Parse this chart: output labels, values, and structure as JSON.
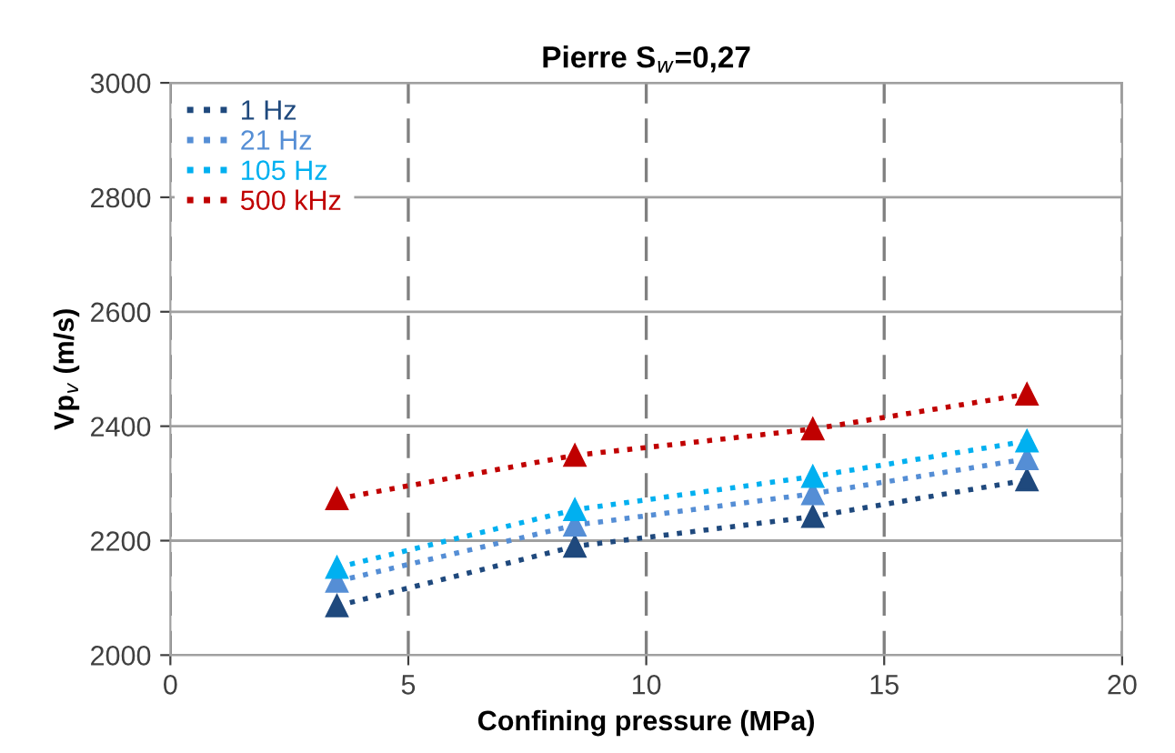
{
  "chart_data": {
    "type": "line",
    "title": "Pierre S$_{w}$=0,27",
    "xlabel": "Confining pressure (MPa)",
    "ylabel": "Vp$_{v}$ (m/s)",
    "x": [
      3.5,
      8.5,
      13.5,
      18
    ],
    "series": [
      {
        "name": "1 Hz",
        "color": "#1f497d",
        "values": [
          2086,
          2190,
          2242,
          2306
        ]
      },
      {
        "name": "21 Hz",
        "color": "#558ed5",
        "values": [
          2129,
          2227,
          2282,
          2343
        ]
      },
      {
        "name": "105 Hz",
        "color": "#00b0f0",
        "values": [
          2153,
          2254,
          2312,
          2374
        ]
      },
      {
        "name": "500 kHz",
        "color": "#c00000",
        "values": [
          2273,
          2349,
          2395,
          2456
        ]
      }
    ],
    "xlim": [
      0,
      20
    ],
    "xticks": [
      0,
      5,
      10,
      15,
      20
    ],
    "ylim": [
      2000,
      3000
    ],
    "yticks": [
      2000,
      2200,
      2400,
      2600,
      2800,
      3000
    ],
    "grid": true,
    "legend": "top left",
    "marker": "triangle",
    "line_style": "dotted"
  }
}
